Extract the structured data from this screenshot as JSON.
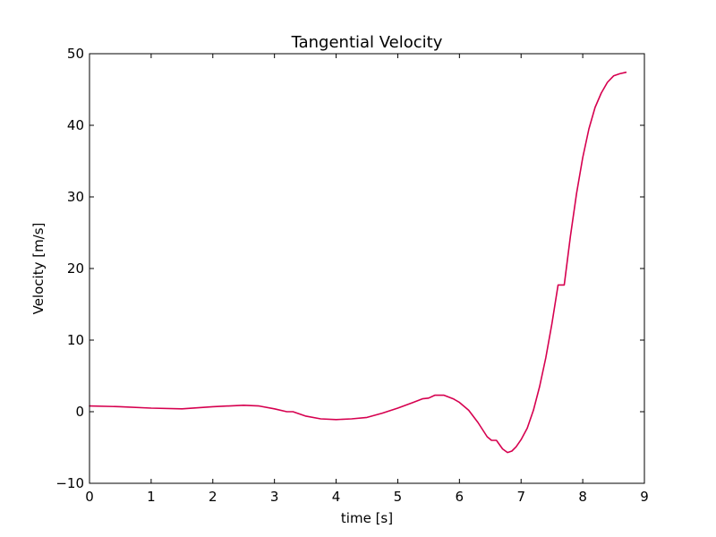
{
  "chart_data": {
    "type": "line",
    "title": "Tangential Velocity",
    "xlabel": "time [s]",
    "ylabel": "Velocity [m/s]",
    "xlim": [
      0,
      9
    ],
    "ylim": [
      -10,
      50
    ],
    "xticks": [
      0,
      1,
      2,
      3,
      4,
      5,
      6,
      7,
      8,
      9
    ],
    "yticks": [
      -10,
      0,
      10,
      20,
      30,
      40,
      50
    ],
    "xtick_labels": [
      "0",
      "1",
      "2",
      "3",
      "4",
      "5",
      "6",
      "7",
      "8",
      "9"
    ],
    "ytick_labels": [
      "−10",
      "0",
      "10",
      "20",
      "30",
      "40",
      "50"
    ],
    "grid": false,
    "legend": "none",
    "series": [
      {
        "color": "#d6004f",
        "x": [
          0,
          0.5,
          1.0,
          1.5,
          2.0,
          2.5,
          2.75,
          3.0,
          3.2,
          3.3,
          3.5,
          3.75,
          4.0,
          4.25,
          4.5,
          4.75,
          5.0,
          5.25,
          5.4,
          5.5,
          5.6,
          5.75,
          5.9,
          6.0,
          6.15,
          6.3,
          6.45,
          6.52,
          6.6,
          6.7,
          6.78,
          6.85,
          6.92,
          7.0,
          7.1,
          7.2,
          7.3,
          7.4,
          7.5,
          7.6,
          7.63,
          7.7,
          7.8,
          7.9,
          8.0,
          8.1,
          8.2,
          8.3,
          8.4,
          8.5,
          8.6,
          8.7
        ],
        "y": [
          0.8,
          0.7,
          0.5,
          0.4,
          0.7,
          0.9,
          0.8,
          0.4,
          0.0,
          0.0,
          -0.6,
          -1.0,
          -1.1,
          -1.0,
          -0.8,
          -0.2,
          0.5,
          1.3,
          1.8,
          1.9,
          2.3,
          2.3,
          1.8,
          1.3,
          0.2,
          -1.5,
          -3.5,
          -4.0,
          -4.0,
          -5.2,
          -5.7,
          -5.5,
          -4.9,
          -3.9,
          -2.3,
          0.2,
          3.5,
          7.5,
          12.3,
          17.7,
          17.7,
          17.7,
          24.5,
          30.5,
          35.5,
          39.5,
          42.5,
          44.5,
          46.0,
          46.9,
          47.2,
          47.4
        ]
      }
    ]
  }
}
